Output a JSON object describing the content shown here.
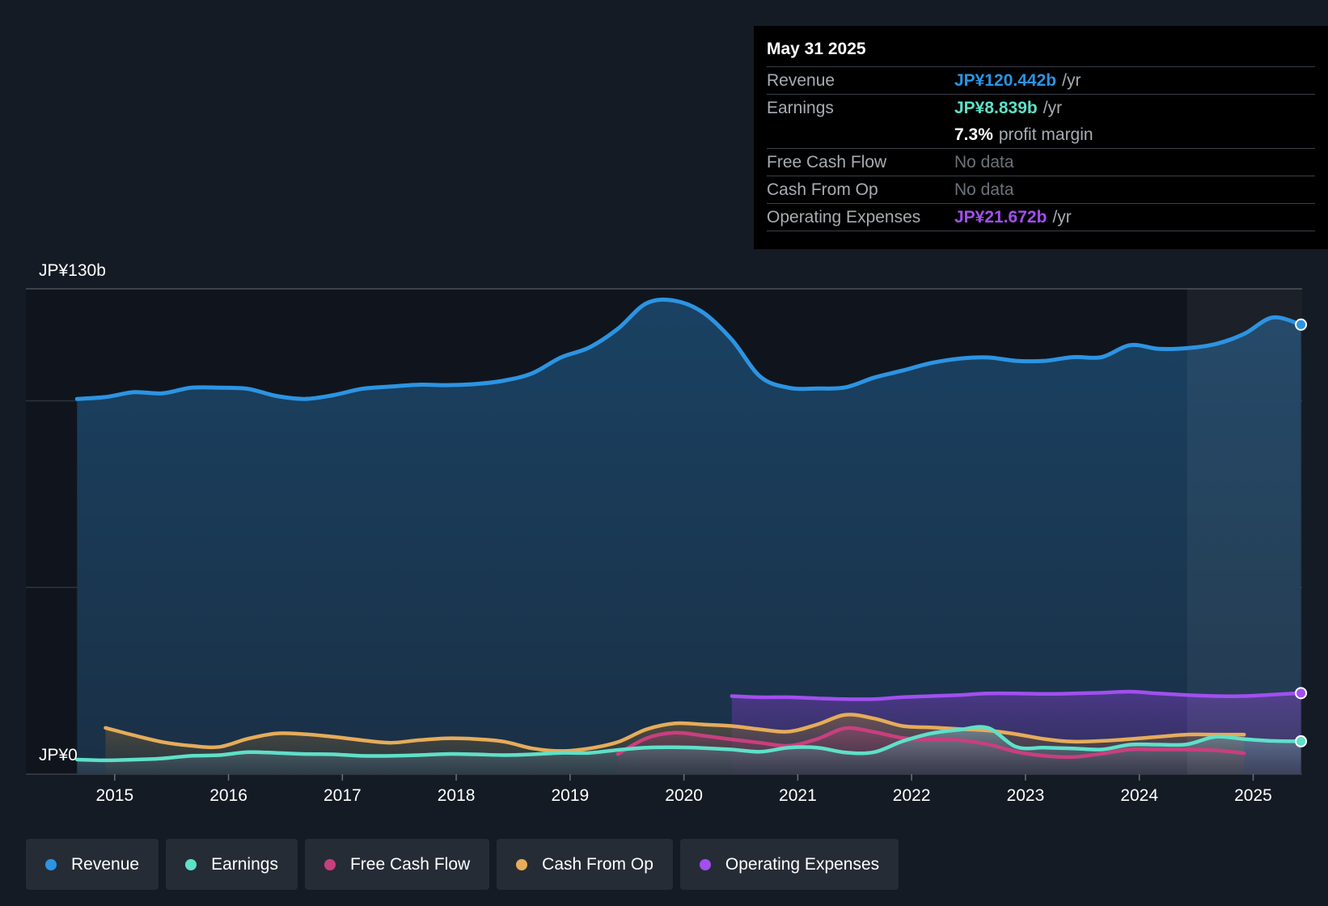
{
  "colors": {
    "revenue": "#2c94e3",
    "earnings": "#5fe0c8",
    "fcf": "#c93f7e",
    "cfo": "#e6ac59",
    "opex": "#a24ff0"
  },
  "tooltip": {
    "date": "May 31 2025",
    "rows": [
      {
        "label": "Revenue",
        "value": "JP¥120.442b",
        "unit": "/yr"
      },
      {
        "label": "Earnings",
        "value": "JP¥8.839b",
        "unit": "/yr"
      },
      {
        "label": "",
        "value": "7.3%",
        "unit": "profit margin"
      },
      {
        "label": "Free Cash Flow",
        "value": "No data"
      },
      {
        "label": "Cash From Op",
        "value": "No data"
      },
      {
        "label": "Operating Expenses",
        "value": "JP¥21.672b",
        "unit": "/yr"
      }
    ]
  },
  "legend": [
    {
      "label": "Revenue",
      "color": "#2c94e3"
    },
    {
      "label": "Earnings",
      "color": "#5fe0c8"
    },
    {
      "label": "Free Cash Flow",
      "color": "#c93f7e"
    },
    {
      "label": "Cash From Op",
      "color": "#e6ac59"
    },
    {
      "label": "Operating Expenses",
      "color": "#a24ff0"
    }
  ],
  "chart_data": {
    "type": "line",
    "title": "",
    "xlabel": "",
    "ylabel": "",
    "ylim": [
      0,
      130
    ],
    "xlim": [
      2014.22,
      2025.43
    ],
    "y_tick_labels": [
      "JP¥130b",
      "JP¥0"
    ],
    "x_ticks": [
      2015,
      2016,
      2017,
      2018,
      2019,
      2020,
      2021,
      2022,
      2023,
      2024,
      2025
    ],
    "x_tick_labels": [
      "2015",
      "2016",
      "2017",
      "2018",
      "2019",
      "2020",
      "2021",
      "2022",
      "2023",
      "2024",
      "2025"
    ],
    "highlight_start": 2024.42,
    "series": [
      {
        "name": "Revenue",
        "key": "revenue",
        "x": [
          2014.67,
          2014.92,
          2015.17,
          2015.42,
          2015.67,
          2015.92,
          2016.17,
          2016.42,
          2016.67,
          2016.92,
          2017.17,
          2017.42,
          2017.67,
          2017.92,
          2018.17,
          2018.42,
          2018.67,
          2018.92,
          2019.17,
          2019.42,
          2019.67,
          2019.92,
          2020.17,
          2020.42,
          2020.67,
          2020.92,
          2021.17,
          2021.42,
          2021.67,
          2021.92,
          2022.17,
          2022.42,
          2022.67,
          2022.92,
          2023.17,
          2023.42,
          2023.67,
          2023.92,
          2024.17,
          2024.42,
          2024.67,
          2024.92,
          2025.17,
          2025.42
        ],
        "y": [
          100.5,
          101,
          102.3,
          102,
          103.5,
          103.5,
          103.2,
          101.3,
          100.5,
          101.5,
          103.2,
          103.8,
          104.3,
          104.2,
          104.5,
          105.4,
          107.4,
          111.6,
          114.3,
          119.3,
          126.1,
          126.8,
          123.6,
          116.4,
          106.5,
          103.5,
          103.3,
          103.6,
          106.2,
          108.1,
          110.1,
          111.3,
          111.6,
          110.7,
          110.7,
          111.7,
          111.7,
          114.9,
          113.9,
          114.1,
          115.2,
          117.9,
          122.3,
          120.4
        ]
      },
      {
        "name": "Earnings",
        "key": "earnings",
        "x": [
          2014.67,
          2014.92,
          2015.17,
          2015.42,
          2015.67,
          2015.92,
          2016.17,
          2016.42,
          2016.67,
          2016.92,
          2017.17,
          2017.42,
          2017.67,
          2017.92,
          2018.17,
          2018.42,
          2018.67,
          2018.92,
          2019.17,
          2019.42,
          2019.67,
          2019.92,
          2020.17,
          2020.42,
          2020.67,
          2020.92,
          2021.17,
          2021.42,
          2021.67,
          2021.92,
          2022.17,
          2022.42,
          2022.67,
          2022.92,
          2023.17,
          2023.42,
          2023.67,
          2023.92,
          2024.17,
          2024.42,
          2024.67,
          2024.92,
          2025.17,
          2025.42
        ],
        "y": [
          3.9,
          3.7,
          3.9,
          4.2,
          4.9,
          5.1,
          5.9,
          5.7,
          5.4,
          5.3,
          4.9,
          4.9,
          5.1,
          5.4,
          5.3,
          5.1,
          5.3,
          5.7,
          5.7,
          6.5,
          7.1,
          7.2,
          7.0,
          6.6,
          6.0,
          7.1,
          7.1,
          5.8,
          5.9,
          8.8,
          10.9,
          11.9,
          12.4,
          7.3,
          7.1,
          6.9,
          6.6,
          7.9,
          7.9,
          8.0,
          10.0,
          9.4,
          8.9,
          8.8
        ]
      },
      {
        "name": "Free Cash Flow",
        "key": "fcf",
        "x": [
          2019.42,
          2019.67,
          2019.92,
          2020.17,
          2020.42,
          2020.67,
          2020.92,
          2021.17,
          2021.42,
          2021.67,
          2021.92,
          2022.17,
          2022.42,
          2022.67,
          2022.92,
          2023.17,
          2023.42,
          2023.67,
          2023.92,
          2024.17,
          2024.42,
          2024.67,
          2024.92
        ],
        "y": [
          5.4,
          9.6,
          11.1,
          10.3,
          9.3,
          8.4,
          7.6,
          9.4,
          12.3,
          11.3,
          9.7,
          9.3,
          9.1,
          8.0,
          6.0,
          4.9,
          4.6,
          5.5,
          6.6,
          6.6,
          6.6,
          6.4,
          5.6
        ]
      },
      {
        "name": "Cash From Op",
        "key": "cfo",
        "x": [
          2014.92,
          2015.17,
          2015.42,
          2015.67,
          2015.92,
          2016.17,
          2016.42,
          2016.67,
          2016.92,
          2017.17,
          2017.42,
          2017.67,
          2017.92,
          2018.17,
          2018.42,
          2018.67,
          2018.92,
          2019.17,
          2019.42,
          2019.67,
          2019.92,
          2020.17,
          2020.42,
          2020.67,
          2020.92,
          2021.17,
          2021.42,
          2021.67,
          2021.92,
          2022.17,
          2022.42,
          2022.67,
          2022.92,
          2023.17,
          2023.42,
          2023.67,
          2023.92,
          2024.17,
          2024.42,
          2024.67,
          2024.92
        ],
        "y": [
          12.4,
          10.4,
          8.6,
          7.6,
          7.3,
          9.5,
          10.9,
          10.7,
          10.0,
          9.1,
          8.4,
          9.1,
          9.6,
          9.4,
          8.7,
          6.9,
          6.2,
          6.9,
          8.6,
          12.0,
          13.6,
          13.3,
          12.9,
          12.0,
          11.4,
          13.3,
          15.9,
          14.9,
          12.9,
          12.5,
          12.1,
          11.7,
          10.7,
          9.4,
          8.7,
          8.9,
          9.4,
          10.0,
          10.6,
          10.6,
          10.6
        ]
      },
      {
        "name": "Operating Expenses",
        "key": "opex",
        "x": [
          2020.42,
          2020.67,
          2020.92,
          2021.17,
          2021.42,
          2021.67,
          2021.92,
          2022.17,
          2022.42,
          2022.67,
          2022.92,
          2023.17,
          2023.42,
          2023.67,
          2023.92,
          2024.17,
          2024.42,
          2024.67,
          2024.92,
          2025.17,
          2025.42
        ],
        "y": [
          20.9,
          20.6,
          20.6,
          20.3,
          20.1,
          20.1,
          20.6,
          20.9,
          21.2,
          21.6,
          21.6,
          21.5,
          21.6,
          21.8,
          22.1,
          21.6,
          21.2,
          20.9,
          20.9,
          21.3,
          21.7
        ]
      }
    ]
  }
}
